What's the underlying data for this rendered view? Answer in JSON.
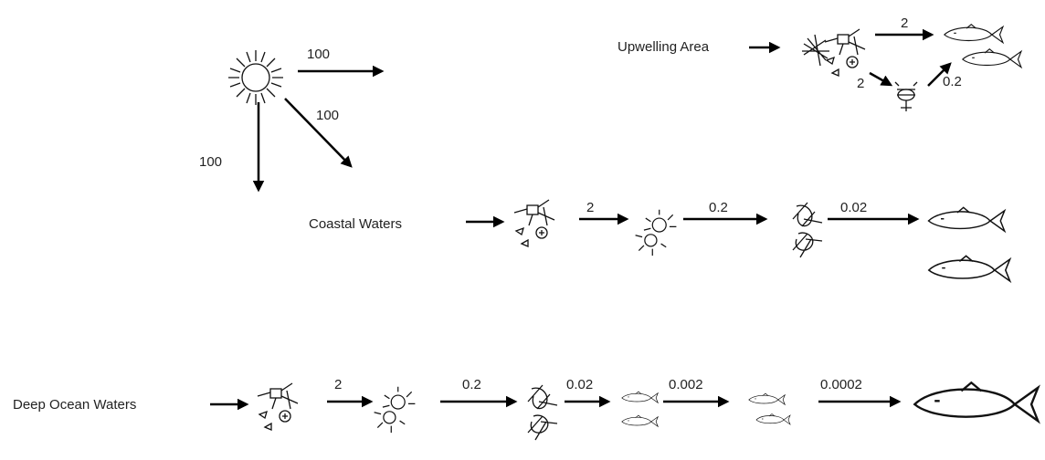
{
  "sun": {
    "edges": [
      "100",
      "100",
      "100"
    ]
  },
  "rows": [
    {
      "label": "Upwelling Area",
      "edges": [
        "2",
        "2",
        "0.2"
      ]
    },
    {
      "label": "Coastal Waters",
      "edges": [
        "2",
        "0.2",
        "0.02"
      ]
    },
    {
      "label": "Deep Ocean Waters",
      "edges": [
        "2",
        "0.2",
        "0.02",
        "0.002",
        "0.0002"
      ]
    }
  ]
}
